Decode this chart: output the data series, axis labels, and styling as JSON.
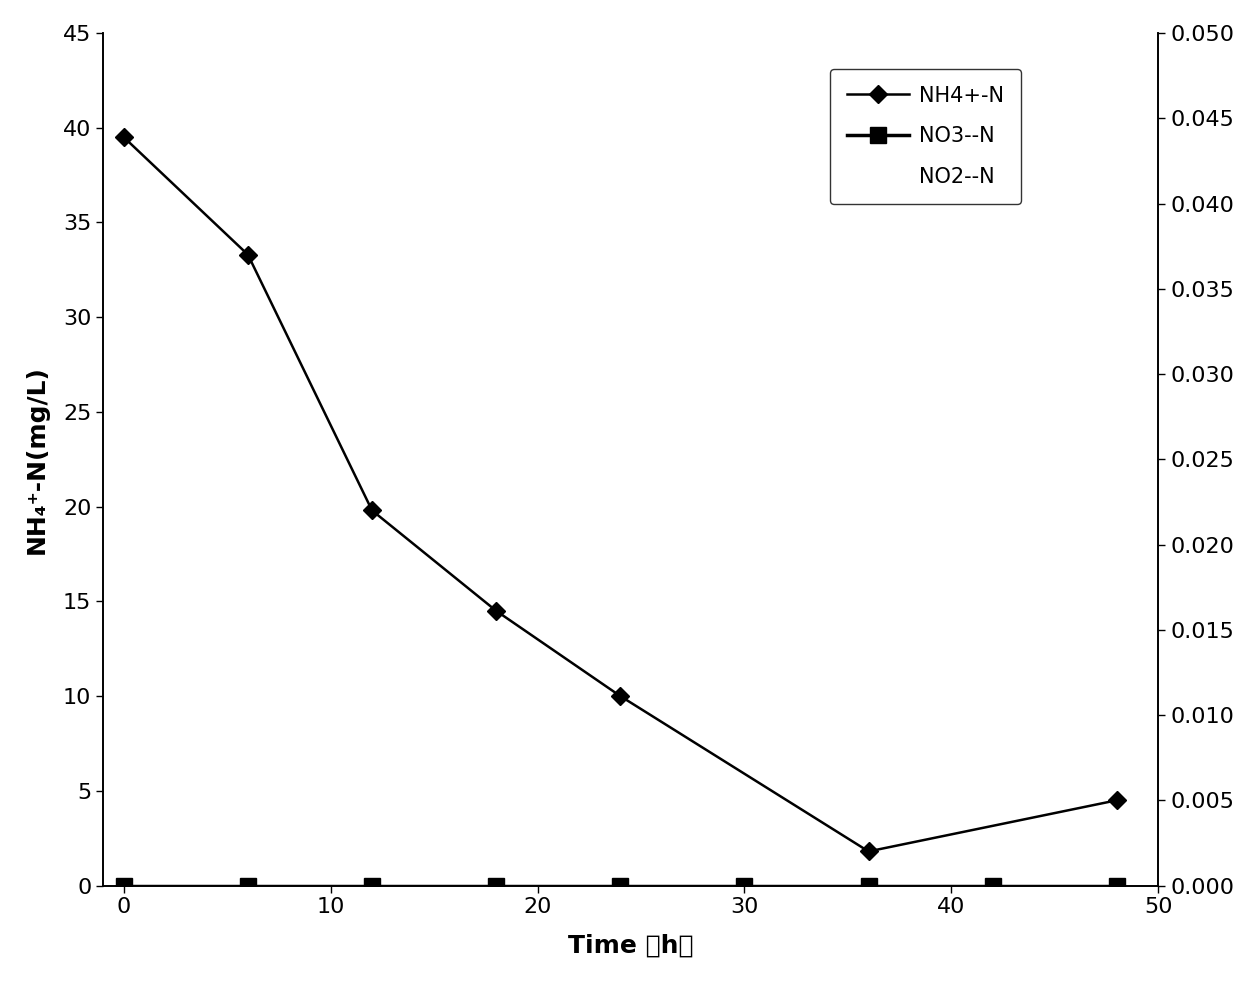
{
  "nh4_x": [
    0,
    6,
    12,
    18,
    24,
    36,
    48
  ],
  "nh4_y": [
    39.5,
    33.3,
    19.8,
    14.5,
    10.0,
    1.8,
    4.5
  ],
  "no3_x": [
    0,
    6,
    12,
    18,
    24,
    30,
    36,
    42,
    48
  ],
  "no3_y": [
    0.0,
    0.0,
    0.0,
    0.0,
    0.0,
    0.0,
    0.0,
    0.0,
    0.0
  ],
  "left_ylim": [
    0,
    45
  ],
  "right_ylim": [
    0,
    0.05
  ],
  "left_yticks": [
    0,
    5,
    10,
    15,
    20,
    25,
    30,
    35,
    40,
    45
  ],
  "right_yticks": [
    0.0,
    0.005,
    0.01,
    0.015,
    0.02,
    0.025,
    0.03,
    0.035,
    0.04,
    0.045,
    0.05
  ],
  "xlim": [
    -1,
    50
  ],
  "xticks": [
    0,
    10,
    20,
    30,
    40,
    50
  ],
  "xlabel": "Time （h）",
  "ylabel_left": "NH₄⁺-N(mg/L)",
  "legend_nh4": "NH4+-N",
  "legend_no3": "NO3--N",
  "legend_no2": "NO2--N",
  "line_color": "#000000",
  "bg_color": "#ffffff",
  "marker_nh4": "D",
  "marker_no3": "s",
  "marker_size_nh4": 9,
  "marker_size_no3": 12,
  "linewidth_nh4": 1.8,
  "linewidth_no3": 2.5,
  "tick_fontsize": 16,
  "label_fontsize": 18,
  "legend_fontsize": 15
}
